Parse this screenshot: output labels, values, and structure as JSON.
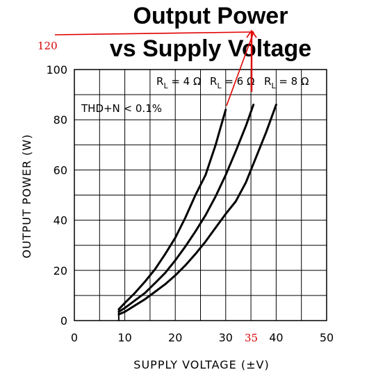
{
  "chart_data": {
    "type": "line",
    "title": "Output Power",
    "subtitle": "vs Supply Voltage",
    "xlabel": "SUPPLY VOLTAGE (±V)",
    "ylabel": "OUTPUT POWER (W)",
    "xlim": [
      0,
      50
    ],
    "ylim": [
      0,
      100
    ],
    "x_ticks": [
      "0",
      "10",
      "20",
      "30",
      "40",
      "50"
    ],
    "y_ticks": [
      "0",
      "20",
      "40",
      "60",
      "80",
      "100"
    ],
    "grid": true,
    "condition_label": "THD+N < 0.1%",
    "series": [
      {
        "name": "RL = 4Ω",
        "label_main": "R",
        "label_sub": "L",
        "label_value": " = 4 Ω",
        "x": [
          8.8,
          10,
          12,
          14,
          16,
          18,
          20,
          22,
          24,
          25,
          26,
          27,
          28,
          29,
          30
        ],
        "y": [
          4.5,
          7,
          11,
          15.5,
          20.5,
          26.5,
          33,
          41,
          50,
          54,
          58,
          64,
          70,
          77,
          84
        ]
      },
      {
        "name": "RL = 6Ω",
        "label_main": "R",
        "label_sub": "L",
        "label_value": " = 6 Ω",
        "x": [
          8.8,
          10,
          12,
          14,
          16,
          18,
          20,
          22,
          24,
          26,
          28,
          30,
          32,
          34,
          35.5
        ],
        "y": [
          3.5,
          5,
          8,
          11,
          15,
          19,
          24,
          29.5,
          35.5,
          42,
          49.5,
          58,
          67.5,
          77.5,
          86
        ]
      },
      {
        "name": "RL = 8Ω",
        "label_main": "R",
        "label_sub": "L",
        "label_value": " = 8 Ω",
        "x": [
          8.8,
          10,
          12,
          14,
          16,
          18,
          20,
          22,
          24,
          26,
          28,
          30,
          32,
          34,
          36,
          38,
          40
        ],
        "y": [
          2.5,
          3.5,
          6,
          8.5,
          11.5,
          14.5,
          18,
          22,
          26.5,
          31.5,
          37,
          42.5,
          47.5,
          55,
          65,
          75,
          86
        ]
      }
    ],
    "annotations": [
      {
        "text": "120",
        "color": "#d40000"
      },
      {
        "text": "35",
        "color": "#d40000"
      }
    ],
    "colors": {
      "curves": "#000000",
      "annotation": "#e00000"
    }
  }
}
